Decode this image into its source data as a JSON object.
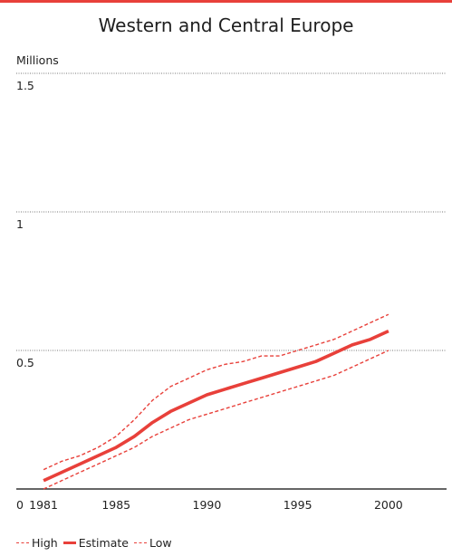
{
  "chart_data": {
    "type": "line",
    "title": "Western and Central Europe",
    "ylabel": "Millions",
    "xlabel": "",
    "ylim": [
      0,
      1.5
    ],
    "xlim": [
      1979.5,
      2003.2
    ],
    "x_ticks": [
      1981,
      1985,
      1990,
      1995,
      2000
    ],
    "y_ticks": [
      0.5,
      1,
      1.5
    ],
    "y_tick_labels": [
      "0.5",
      "1",
      "1.5"
    ],
    "zero_label": "0",
    "x": [
      1981,
      1982,
      1983,
      1984,
      1985,
      1986,
      1987,
      1988,
      1989,
      1990,
      1991,
      1992,
      1993,
      1994,
      1995,
      1996,
      1997,
      1998,
      1999,
      2000
    ],
    "series": [
      {
        "name": "High",
        "style": "dashed",
        "values": [
          0.07,
          0.1,
          0.12,
          0.15,
          0.19,
          0.25,
          0.32,
          0.37,
          0.4,
          0.43,
          0.45,
          0.46,
          0.48,
          0.48,
          0.5,
          0.52,
          0.54,
          0.57,
          0.6,
          0.63
        ]
      },
      {
        "name": "Estimate",
        "style": "solid",
        "values": [
          0.03,
          0.06,
          0.09,
          0.12,
          0.15,
          0.19,
          0.24,
          0.28,
          0.31,
          0.34,
          0.36,
          0.38,
          0.4,
          0.42,
          0.44,
          0.46,
          0.49,
          0.52,
          0.54,
          0.57
        ]
      },
      {
        "name": "Low",
        "style": "dashed",
        "values": [
          0.0,
          0.03,
          0.06,
          0.09,
          0.12,
          0.15,
          0.19,
          0.22,
          0.25,
          0.27,
          0.29,
          0.31,
          0.33,
          0.35,
          0.37,
          0.39,
          0.41,
          0.44,
          0.47,
          0.5
        ]
      }
    ],
    "grid": true,
    "legend_position": "bottom-left"
  },
  "colors": {
    "accent": "#e8403a",
    "grid": "#777777",
    "axis": "#333333"
  }
}
